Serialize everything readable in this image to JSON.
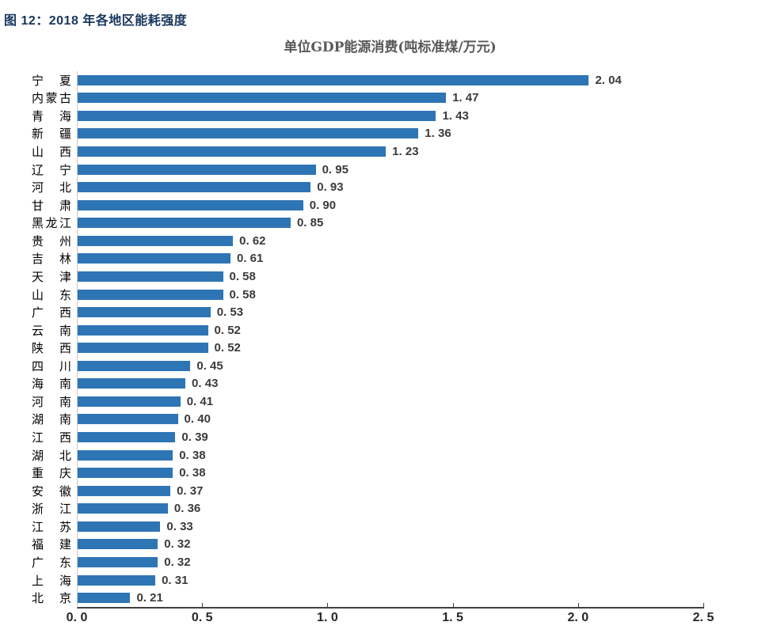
{
  "figure": {
    "title": "图 12：2018 年各地区能耗强度"
  },
  "chart_data": {
    "type": "bar",
    "orientation": "horizontal",
    "title": "单位GDP能源消费(吨标准煤/万元)",
    "categories": [
      "宁夏",
      "内蒙古",
      "青海",
      "新疆",
      "山西",
      "辽宁",
      "河北",
      "甘肃",
      "黑龙江",
      "贵州",
      "吉林",
      "天津",
      "山东",
      "广西",
      "云南",
      "陕西",
      "四川",
      "海南",
      "河南",
      "湖南",
      "江西",
      "湖北",
      "重庆",
      "安徽",
      "浙江",
      "江苏",
      "福建",
      "广东",
      "上海",
      "北京"
    ],
    "values": [
      2.04,
      1.47,
      1.43,
      1.36,
      1.23,
      0.95,
      0.93,
      0.9,
      0.85,
      0.62,
      0.61,
      0.58,
      0.58,
      0.53,
      0.52,
      0.52,
      0.45,
      0.43,
      0.41,
      0.4,
      0.39,
      0.38,
      0.38,
      0.37,
      0.36,
      0.33,
      0.32,
      0.32,
      0.31,
      0.21
    ],
    "value_labels": [
      "2. 04",
      "1. 47",
      "1. 43",
      "1. 36",
      "1. 23",
      "0. 95",
      "0. 93",
      "0. 90",
      "0. 85",
      "0. 62",
      "0. 61",
      "0. 58",
      "0. 58",
      "0. 53",
      "0. 52",
      "0. 52",
      "0. 45",
      "0. 43",
      "0. 41",
      "0. 40",
      "0. 39",
      "0. 38",
      "0. 38",
      "0. 37",
      "0. 36",
      "0. 33",
      "0. 32",
      "0. 32",
      "0. 31",
      "0. 21"
    ],
    "x_ticks": [
      "0. 0",
      "0. 5",
      "1. 0",
      "1. 5",
      "2. 0",
      "2. 5"
    ],
    "xlim": [
      0,
      2.5
    ],
    "grid": "off",
    "legend": "none",
    "bar_color": "#2E75B6",
    "axis_line_color": "#404040",
    "category_axis_line_color": "#C9C9C9",
    "title_color": "#595959",
    "figure_title_color": "#17365D"
  }
}
